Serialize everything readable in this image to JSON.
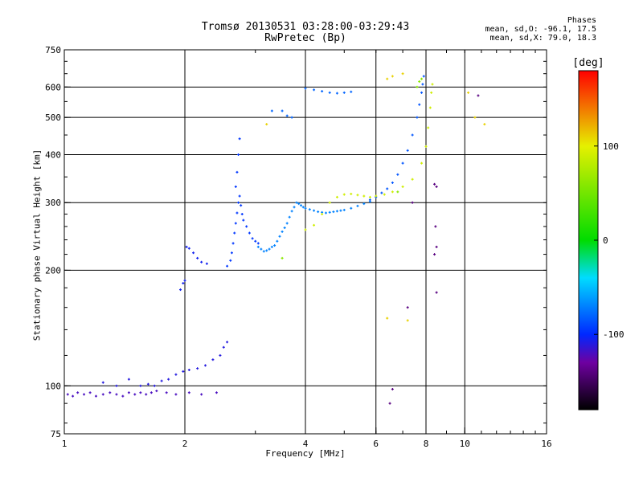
{
  "chart_data": {
    "type": "scatter",
    "title": "Tromsø 20130531 03:28:00-03:29:43",
    "subtitle": "RwPretec (Bp)",
    "xlabel": "Frequency [MHz]",
    "ylabel": "Stationary phase Virtual Height [km]",
    "xscale": "log",
    "yscale": "log",
    "xlim": [
      1,
      16
    ],
    "ylim": [
      75,
      750
    ],
    "xticks": [
      1,
      2,
      4,
      6,
      8,
      10,
      16
    ],
    "yticks": [
      75,
      100,
      200,
      300,
      400,
      500,
      600,
      750
    ],
    "grid_x": [
      2,
      4,
      6,
      8,
      10
    ],
    "grid_y": [
      100,
      200,
      300,
      400,
      500,
      600
    ],
    "colorbar": {
      "label": "[deg]",
      "min": -180,
      "max": 180,
      "ticks": [
        -100,
        0,
        100
      ]
    },
    "phase_info": {
      "heading": "Phases",
      "o_line": "mean, sd,O: -96.1, 17.5",
      "x_line": "mean, sd,X:  79.0, 18.3"
    },
    "series": [
      {
        "phase": -120,
        "points": [
          [
            1.02,
            95
          ],
          [
            1.05,
            94
          ],
          [
            1.08,
            96
          ],
          [
            1.12,
            95
          ],
          [
            1.16,
            96
          ],
          [
            1.2,
            94
          ],
          [
            1.25,
            95
          ],
          [
            1.3,
            96
          ],
          [
            1.35,
            95
          ],
          [
            1.4,
            94
          ],
          [
            1.45,
            96
          ],
          [
            1.5,
            95
          ],
          [
            1.55,
            96
          ],
          [
            1.6,
            95
          ],
          [
            1.65,
            96
          ],
          [
            1.7,
            97
          ],
          [
            1.8,
            96
          ],
          [
            1.9,
            95
          ],
          [
            2.05,
            96
          ],
          [
            2.2,
            95
          ],
          [
            2.4,
            96
          ]
        ]
      },
      {
        "phase": -110,
        "points": [
          [
            1.25,
            102
          ],
          [
            1.35,
            100
          ],
          [
            1.45,
            104
          ],
          [
            1.55,
            100
          ],
          [
            1.62,
            101
          ],
          [
            1.68,
            100
          ],
          [
            1.75,
            103
          ],
          [
            1.82,
            104
          ],
          [
            1.9,
            107
          ],
          [
            1.98,
            109
          ],
          [
            2.05,
            110
          ],
          [
            2.15,
            111
          ],
          [
            2.25,
            113
          ],
          [
            2.35,
            117
          ],
          [
            2.45,
            120
          ],
          [
            2.5,
            126
          ],
          [
            2.55,
            130
          ]
        ]
      },
      {
        "phase": -105,
        "points": [
          [
            1.95,
            178
          ],
          [
            1.98,
            185
          ],
          [
            2.0,
            188
          ],
          [
            2.02,
            230
          ],
          [
            2.05,
            228
          ],
          [
            2.1,
            222
          ],
          [
            2.15,
            215
          ],
          [
            2.2,
            210
          ],
          [
            2.27,
            208
          ]
        ]
      },
      {
        "phase": -95,
        "points": [
          [
            2.55,
            205
          ],
          [
            2.6,
            212
          ],
          [
            2.62,
            222
          ],
          [
            2.64,
            235
          ],
          [
            2.66,
            250
          ],
          [
            2.68,
            265
          ],
          [
            2.7,
            282
          ],
          [
            2.72,
            300
          ],
          [
            2.74,
            312
          ],
          [
            2.76,
            295
          ],
          [
            2.78,
            280
          ],
          [
            2.8,
            270
          ],
          [
            2.85,
            260
          ],
          [
            2.9,
            250
          ],
          [
            2.95,
            242
          ],
          [
            3.0,
            238
          ],
          [
            3.05,
            235
          ],
          [
            2.68,
            330
          ],
          [
            2.7,
            360
          ],
          [
            2.72,
            400
          ],
          [
            2.74,
            440
          ]
        ]
      },
      {
        "phase": -70,
        "points": [
          [
            3.05,
            230
          ],
          [
            3.1,
            227
          ],
          [
            3.15,
            224
          ],
          [
            3.2,
            225
          ],
          [
            3.25,
            227
          ],
          [
            3.3,
            230
          ],
          [
            3.35,
            232
          ],
          [
            3.4,
            238
          ],
          [
            3.45,
            245
          ],
          [
            3.5,
            252
          ],
          [
            3.55,
            258
          ],
          [
            3.6,
            265
          ],
          [
            3.65,
            275
          ],
          [
            3.7,
            285
          ],
          [
            3.75,
            292
          ],
          [
            3.8,
            300
          ],
          [
            3.85,
            298
          ],
          [
            3.9,
            295
          ],
          [
            3.95,
            292
          ],
          [
            4.0,
            290
          ],
          [
            4.1,
            288
          ],
          [
            4.2,
            286
          ],
          [
            4.3,
            284
          ],
          [
            4.4,
            283
          ],
          [
            4.5,
            282
          ],
          [
            4.6,
            283
          ],
          [
            4.7,
            284
          ],
          [
            4.8,
            285
          ],
          [
            4.9,
            286
          ],
          [
            5.0,
            287
          ],
          [
            5.2,
            290
          ],
          [
            5.4,
            294
          ],
          [
            5.6,
            298
          ],
          [
            5.8,
            302
          ]
        ]
      },
      {
        "phase": -85,
        "points": [
          [
            5.8,
            305
          ],
          [
            6.0,
            310
          ],
          [
            6.2,
            318
          ],
          [
            6.4,
            326
          ],
          [
            6.6,
            338
          ],
          [
            6.8,
            355
          ],
          [
            7.0,
            380
          ],
          [
            7.2,
            410
          ],
          [
            7.4,
            450
          ],
          [
            7.6,
            500
          ],
          [
            7.7,
            540
          ],
          [
            7.8,
            580
          ],
          [
            7.85,
            610
          ],
          [
            7.9,
            640
          ]
        ]
      },
      {
        "phase": -80,
        "points": [
          [
            4.0,
            595
          ],
          [
            4.2,
            590
          ],
          [
            4.4,
            585
          ],
          [
            4.6,
            580
          ],
          [
            4.8,
            578
          ],
          [
            5.0,
            580
          ],
          [
            5.2,
            583
          ],
          [
            3.7,
            500
          ],
          [
            3.6,
            505
          ],
          [
            3.5,
            520
          ],
          [
            3.3,
            520
          ]
        ]
      },
      {
        "phase": 90,
        "points": [
          [
            4.0,
            255
          ],
          [
            4.2,
            262
          ],
          [
            4.4,
            280
          ],
          [
            4.6,
            300
          ],
          [
            4.8,
            310
          ],
          [
            5.0,
            315
          ],
          [
            5.2,
            316
          ],
          [
            5.4,
            314
          ],
          [
            5.6,
            312
          ],
          [
            5.8,
            310
          ],
          [
            6.0,
            312
          ],
          [
            6.3,
            315
          ],
          [
            6.6,
            320
          ],
          [
            7.0,
            330
          ],
          [
            7.4,
            345
          ],
          [
            7.8,
            380
          ],
          [
            8.0,
            420
          ],
          [
            8.1,
            470
          ],
          [
            8.2,
            530
          ],
          [
            8.25,
            580
          ],
          [
            8.3,
            610
          ]
        ]
      },
      {
        "phase": 110,
        "points": [
          [
            6.4,
            630
          ],
          [
            6.6,
            640
          ],
          [
            7.0,
            650
          ],
          [
            3.2,
            480
          ],
          [
            10.6,
            500
          ],
          [
            11.2,
            480
          ],
          [
            10.2,
            580
          ],
          [
            6.4,
            150
          ],
          [
            7.2,
            148
          ]
        ]
      },
      {
        "phase": 60,
        "points": [
          [
            7.6,
            600
          ],
          [
            7.7,
            620
          ],
          [
            7.8,
            630
          ],
          [
            3.5,
            215
          ],
          [
            6.8,
            320
          ]
        ]
      },
      {
        "phase": -140,
        "points": [
          [
            8.4,
            335
          ],
          [
            8.5,
            330
          ],
          [
            8.45,
            260
          ],
          [
            8.5,
            230
          ],
          [
            8.4,
            220
          ],
          [
            8.5,
            175
          ],
          [
            7.2,
            160
          ],
          [
            6.5,
            90
          ],
          [
            6.6,
            98
          ],
          [
            7.4,
            300
          ],
          [
            10.8,
            570
          ]
        ]
      }
    ]
  }
}
